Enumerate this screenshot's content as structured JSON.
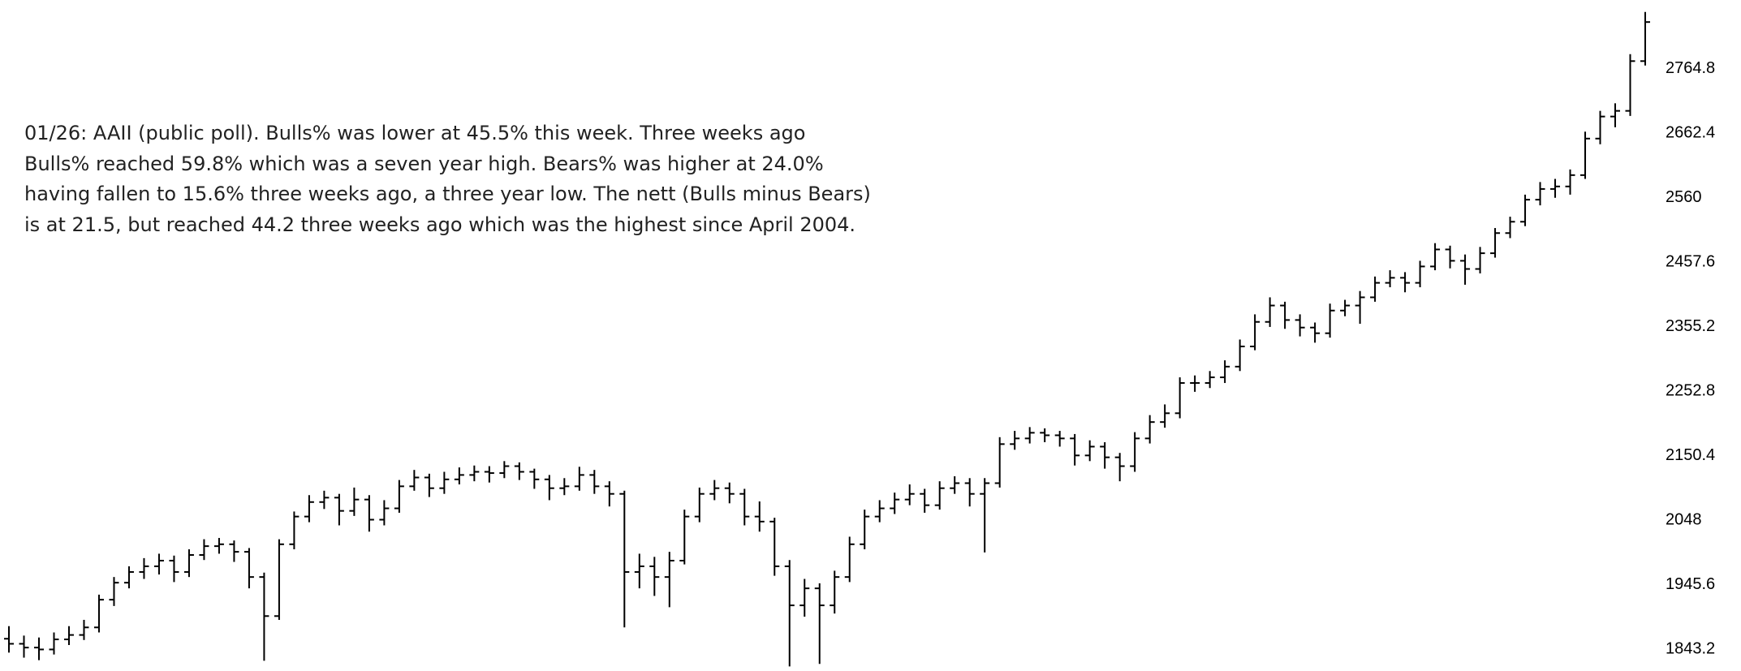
{
  "chart_data": {
    "type": "ohlc",
    "annotation": [
      "01/26: AAII (public poll). Bulls% was lower at 45.5% this week. Three weeks ago",
      "Bulls% reached 59.8% which was a seven year high. Bears% was higher at 24.0%",
      "having fallen to 15.6% three weeks ago, a three year low. The nett (Bulls minus Bears)",
      "is at 21.5, but reached 44.2 three weeks ago which was the highest since April 2004."
    ],
    "color": "#000000",
    "ylim": [
      1808.8,
      2874
    ],
    "yticks": [
      1843.2,
      1945.6,
      2048,
      2150.4,
      2252.8,
      2355.2,
      2457.6,
      2560,
      2662.4,
      2764.8
    ],
    "ohlc": [
      [
        1860,
        1880,
        1838,
        1852
      ],
      [
        1852,
        1865,
        1830,
        1846
      ],
      [
        1846,
        1862,
        1826,
        1843
      ],
      [
        1843,
        1870,
        1835,
        1859
      ],
      [
        1859,
        1880,
        1850,
        1866
      ],
      [
        1866,
        1890,
        1858,
        1878
      ],
      [
        1878,
        1930,
        1870,
        1922
      ],
      [
        1922,
        1958,
        1912,
        1949
      ],
      [
        1949,
        1975,
        1940,
        1966
      ],
      [
        1966,
        1988,
        1955,
        1975
      ],
      [
        1975,
        1995,
        1962,
        1984
      ],
      [
        1984,
        1992,
        1950,
        1966
      ],
      [
        1966,
        2002,
        1958,
        1993
      ],
      [
        1993,
        2018,
        1985,
        2007
      ],
      [
        2007,
        2020,
        1995,
        2010
      ],
      [
        2010,
        2016,
        1982,
        1998
      ],
      [
        1998,
        2004,
        1940,
        1958
      ],
      [
        1958,
        1965,
        1825,
        1896
      ],
      [
        1896,
        2018,
        1890,
        2010
      ],
      [
        2010,
        2062,
        2002,
        2054
      ],
      [
        2054,
        2088,
        2045,
        2077
      ],
      [
        2077,
        2095,
        2066,
        2084
      ],
      [
        2084,
        2090,
        2040,
        2063
      ],
      [
        2063,
        2100,
        2055,
        2081
      ],
      [
        2081,
        2088,
        2030,
        2049
      ],
      [
        2049,
        2080,
        2040,
        2067
      ],
      [
        2067,
        2112,
        2060,
        2102
      ],
      [
        2102,
        2128,
        2095,
        2116
      ],
      [
        2116,
        2122,
        2085,
        2099
      ],
      [
        2099,
        2125,
        2090,
        2113
      ],
      [
        2113,
        2132,
        2105,
        2120
      ],
      [
        2120,
        2135,
        2110,
        2125
      ],
      [
        2125,
        2134,
        2108,
        2123
      ],
      [
        2123,
        2142,
        2115,
        2134
      ],
      [
        2134,
        2140,
        2112,
        2125
      ],
      [
        2125,
        2130,
        2098,
        2113
      ],
      [
        2113,
        2120,
        2080,
        2099
      ],
      [
        2099,
        2115,
        2088,
        2102
      ],
      [
        2102,
        2133,
        2095,
        2120
      ],
      [
        2120,
        2128,
        2090,
        2102
      ],
      [
        2102,
        2110,
        2070,
        2090
      ],
      [
        2090,
        2095,
        1878,
        1966
      ],
      [
        1966,
        1995,
        1940,
        1975
      ],
      [
        1975,
        1990,
        1928,
        1958
      ],
      [
        1958,
        1998,
        1910,
        1984
      ],
      [
        1984,
        2065,
        1978,
        2054
      ],
      [
        2054,
        2100,
        2045,
        2090
      ],
      [
        2090,
        2112,
        2080,
        2099
      ],
      [
        2099,
        2108,
        2075,
        2090
      ],
      [
        2090,
        2098,
        2040,
        2054
      ],
      [
        2054,
        2078,
        2030,
        2046
      ],
      [
        2046,
        2052,
        1960,
        1975
      ],
      [
        1975,
        1985,
        1816,
        1913
      ],
      [
        1913,
        1955,
        1895,
        1940
      ],
      [
        1940,
        1948,
        1820,
        1913
      ],
      [
        1913,
        1968,
        1900,
        1958
      ],
      [
        1958,
        2022,
        1950,
        2010
      ],
      [
        2010,
        2065,
        2002,
        2054
      ],
      [
        2054,
        2080,
        2045,
        2067
      ],
      [
        2067,
        2092,
        2058,
        2081
      ],
      [
        2081,
        2105,
        2072,
        2090
      ],
      [
        2090,
        2098,
        2060,
        2072
      ],
      [
        2072,
        2110,
        2065,
        2099
      ],
      [
        2099,
        2118,
        2090,
        2107
      ],
      [
        2107,
        2115,
        2070,
        2090
      ],
      [
        2090,
        2115,
        1997,
        2107
      ],
      [
        2107,
        2180,
        2100,
        2169
      ],
      [
        2169,
        2190,
        2160,
        2178
      ],
      [
        2178,
        2196,
        2170,
        2187
      ],
      [
        2187,
        2194,
        2172,
        2183
      ],
      [
        2183,
        2190,
        2165,
        2178
      ],
      [
        2178,
        2185,
        2135,
        2151
      ],
      [
        2151,
        2175,
        2142,
        2165
      ],
      [
        2165,
        2172,
        2130,
        2148
      ],
      [
        2148,
        2155,
        2110,
        2134
      ],
      [
        2134,
        2188,
        2125,
        2178
      ],
      [
        2178,
        2215,
        2170,
        2204
      ],
      [
        2204,
        2232,
        2195,
        2218
      ],
      [
        2218,
        2275,
        2210,
        2266
      ],
      [
        2266,
        2278,
        2252,
        2266
      ],
      [
        2266,
        2285,
        2258,
        2275
      ],
      [
        2275,
        2302,
        2266,
        2292
      ],
      [
        2292,
        2335,
        2285,
        2324
      ],
      [
        2324,
        2375,
        2318,
        2363
      ],
      [
        2363,
        2402,
        2355,
        2389
      ],
      [
        2389,
        2395,
        2352,
        2366
      ],
      [
        2366,
        2375,
        2340,
        2354
      ],
      [
        2354,
        2362,
        2330,
        2345
      ],
      [
        2345,
        2392,
        2338,
        2381
      ],
      [
        2381,
        2398,
        2372,
        2389
      ],
      [
        2389,
        2412,
        2360,
        2402
      ],
      [
        2402,
        2435,
        2395,
        2425
      ],
      [
        2425,
        2445,
        2418,
        2433
      ],
      [
        2433,
        2442,
        2410,
        2425
      ],
      [
        2425,
        2460,
        2418,
        2451
      ],
      [
        2451,
        2488,
        2445,
        2478
      ],
      [
        2478,
        2484,
        2448,
        2460
      ],
      [
        2460,
        2470,
        2422,
        2447
      ],
      [
        2447,
        2482,
        2440,
        2472
      ],
      [
        2472,
        2512,
        2465,
        2504
      ],
      [
        2504,
        2530,
        2496,
        2522
      ],
      [
        2522,
        2565,
        2515,
        2557
      ],
      [
        2557,
        2585,
        2548,
        2574
      ],
      [
        2574,
        2590,
        2560,
        2578
      ],
      [
        2578,
        2605,
        2565,
        2596
      ],
      [
        2596,
        2665,
        2590,
        2654
      ],
      [
        2654,
        2698,
        2645,
        2689
      ],
      [
        2689,
        2710,
        2672,
        2698
      ],
      [
        2698,
        2788,
        2690,
        2777
      ],
      [
        2777,
        2855,
        2770,
        2839
      ]
    ]
  }
}
